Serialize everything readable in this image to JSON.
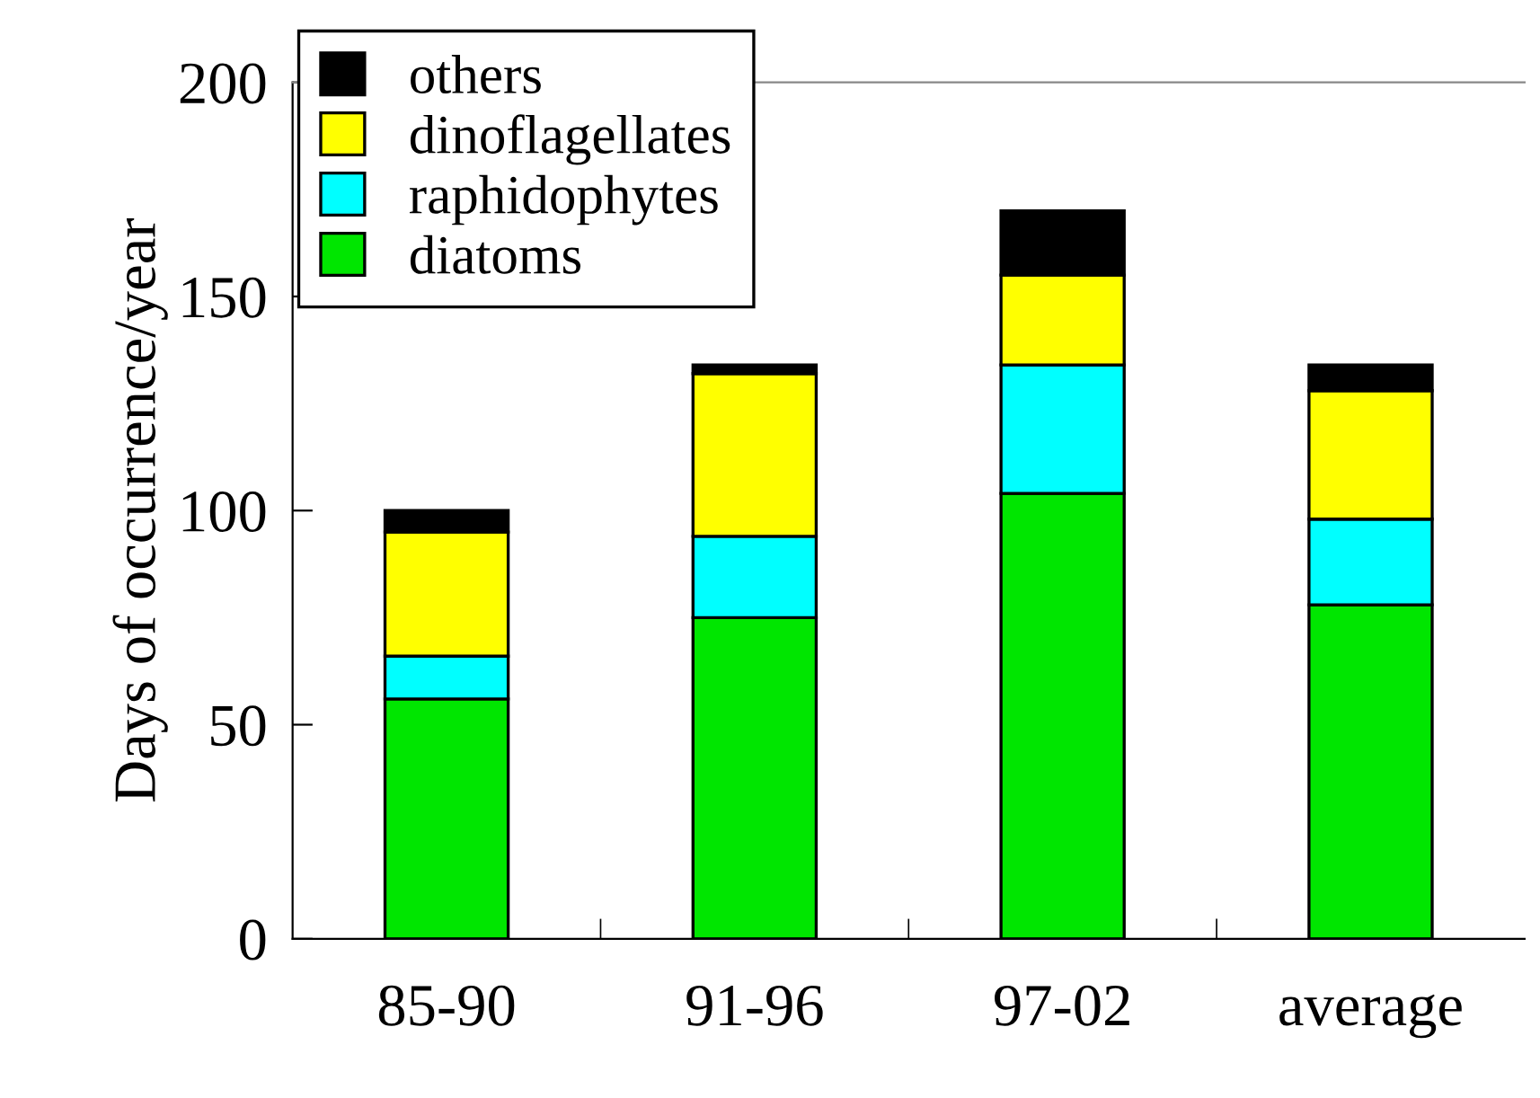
{
  "chart_data": {
    "type": "bar",
    "stacked": true,
    "ylabel": "Days of occurrence/year",
    "categories": [
      "85-90",
      "91-96",
      "97-02",
      "average"
    ],
    "series": [
      {
        "name": "diatoms",
        "color": "#00e600",
        "values": [
          56,
          75,
          104,
          78
        ]
      },
      {
        "name": "raphidophytes",
        "color": "#00ffff",
        "values": [
          10,
          19,
          30,
          20
        ]
      },
      {
        "name": "dinoflagellates",
        "color": "#ffff00",
        "values": [
          29,
          38,
          21,
          30
        ]
      },
      {
        "name": "others",
        "color": "#000000",
        "values": [
          5,
          2,
          15,
          6
        ]
      }
    ],
    "ylim": [
      0,
      200
    ],
    "yticks": [
      0,
      50,
      100,
      150,
      200
    ],
    "legend": "top left",
    "grid": false
  }
}
